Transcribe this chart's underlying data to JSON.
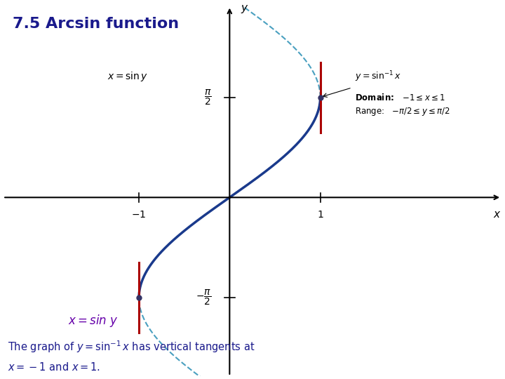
{
  "title": "7.5 Arcsin function",
  "title_color": "#1a1a8c",
  "title_fontsize": 16,
  "background_color": "#ffffff",
  "arcsin_color": "#1a3a8c",
  "arcsin_full_color": "#4aa0c0",
  "vertical_tangent_color": "#aa0000",
  "dot_color": "#333366",
  "text_xsiny_graph": "x = sin y",
  "text_xsiny_bottom": "x = sin y",
  "text_bottom_line1": "The graph of y = sin",
  "text_bottom_line2": "x has vertical tangents at",
  "text_bottom_line3": "x = –1 and x = 1.",
  "annotation_label_line1": "y = sin",
  "annotation_label_line2": "−1x",
  "domain_text": "Domain:   −1 ≤ x ≤ 1",
  "range_text": "Range:  −π/2 ≤ y ≤ π/2",
  "xlim": [
    -2.5,
    3.0
  ],
  "ylim": [
    -2.8,
    3.0
  ],
  "pi_half": 1.5707963267948966,
  "x_tick_labels": [
    "-1",
    "1"
  ],
  "y_tick_labels": [
    "π/2",
    "-π/2"
  ]
}
